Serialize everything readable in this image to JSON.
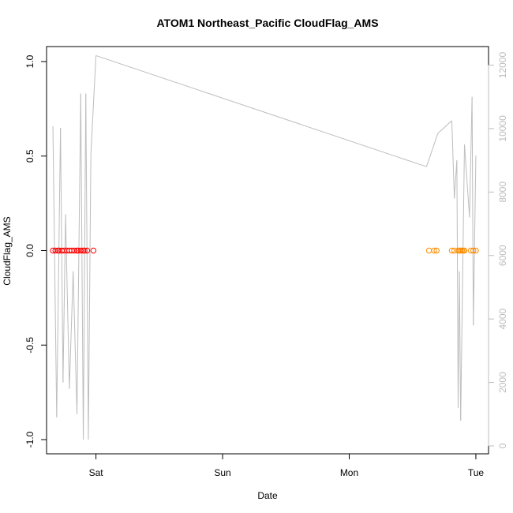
{
  "chart_data": {
    "type": "scatter",
    "title": "ATOM1 Northeast_Pacific CloudFlag_AMS",
    "xlabel": "Date",
    "ylabel": "CloudFlag_AMS",
    "x_ticks": [
      "Sat",
      "Sun",
      "Mon",
      "Tue"
    ],
    "y_ticks": [
      "-1.0",
      "-0.5",
      "0.0",
      "0.5",
      "1.0"
    ],
    "y_ticks_right": [
      "0",
      "2000",
      "4000",
      "6000",
      "8000",
      "10000",
      "12000"
    ],
    "ylim": [
      -1.0,
      1.0
    ],
    "y2lim": [
      0,
      12000
    ],
    "x_unit": "days from Friday 00:00",
    "xlim": [
      0.61,
      4.1
    ],
    "grid": false,
    "colors": {
      "series1": "#ff0000",
      "series2": "#ff8c00",
      "line": "#bdbdbd",
      "axis": "#000000",
      "right_axis": "#bdbdbd"
    },
    "series": [
      {
        "axis": "left",
        "marker": "open-circle",
        "color": "#ff0000",
        "points": [
          {
            "x": 0.66,
            "y": 0
          },
          {
            "x": 0.68,
            "y": 0
          },
          {
            "x": 0.7,
            "y": 0
          },
          {
            "x": 0.71,
            "y": 0
          },
          {
            "x": 0.73,
            "y": 0
          },
          {
            "x": 0.75,
            "y": 0
          },
          {
            "x": 0.77,
            "y": 0
          },
          {
            "x": 0.79,
            "y": 0
          },
          {
            "x": 0.81,
            "y": 0
          },
          {
            "x": 0.83,
            "y": 0
          },
          {
            "x": 0.85,
            "y": 0
          },
          {
            "x": 0.86,
            "y": 0
          },
          {
            "x": 0.88,
            "y": 0
          },
          {
            "x": 0.9,
            "y": 0
          },
          {
            "x": 0.91,
            "y": 0
          },
          {
            "x": 0.93,
            "y": 0
          },
          {
            "x": 0.98,
            "y": 0
          }
        ]
      },
      {
        "axis": "left",
        "marker": "open-circle",
        "color": "#ff8c00",
        "points": [
          {
            "x": 3.63,
            "y": 0
          },
          {
            "x": 3.67,
            "y": 0
          },
          {
            "x": 3.69,
            "y": 0
          },
          {
            "x": 3.81,
            "y": 0
          },
          {
            "x": 3.83,
            "y": 0
          },
          {
            "x": 3.86,
            "y": 0
          },
          {
            "x": 3.87,
            "y": 0
          },
          {
            "x": 3.88,
            "y": 0
          },
          {
            "x": 3.89,
            "y": 0
          },
          {
            "x": 3.9,
            "y": 0
          },
          {
            "x": 3.91,
            "y": 0
          },
          {
            "x": 3.96,
            "y": 0
          },
          {
            "x": 3.98,
            "y": 0
          },
          {
            "x": 4.0,
            "y": 0
          }
        ]
      },
      {
        "axis": "right",
        "type": "line",
        "color": "#bdbdbd",
        "points": [
          {
            "x": 0.66,
            "y": 10080
          },
          {
            "x": 0.69,
            "y": 900
          },
          {
            "x": 0.72,
            "y": 10020
          },
          {
            "x": 0.74,
            "y": 2000
          },
          {
            "x": 0.76,
            "y": 7300
          },
          {
            "x": 0.79,
            "y": 1800
          },
          {
            "x": 0.82,
            "y": 5500
          },
          {
            "x": 0.85,
            "y": 1000
          },
          {
            "x": 0.88,
            "y": 11100
          },
          {
            "x": 0.9,
            "y": 200
          },
          {
            "x": 0.92,
            "y": 11100
          },
          {
            "x": 0.94,
            "y": 200
          },
          {
            "x": 0.96,
            "y": 9200
          },
          {
            "x": 1.0,
            "y": 12300
          },
          {
            "x": 3.61,
            "y": 8800
          },
          {
            "x": 3.7,
            "y": 9850
          },
          {
            "x": 3.81,
            "y": 10250
          },
          {
            "x": 3.83,
            "y": 7800
          },
          {
            "x": 3.85,
            "y": 9000
          },
          {
            "x": 3.86,
            "y": 1200
          },
          {
            "x": 3.87,
            "y": 5500
          },
          {
            "x": 3.88,
            "y": 800
          },
          {
            "x": 3.91,
            "y": 9500
          },
          {
            "x": 3.95,
            "y": 7200
          },
          {
            "x": 3.97,
            "y": 11000
          },
          {
            "x": 3.98,
            "y": 3800
          },
          {
            "x": 4.0,
            "y": 9150
          }
        ]
      }
    ]
  }
}
